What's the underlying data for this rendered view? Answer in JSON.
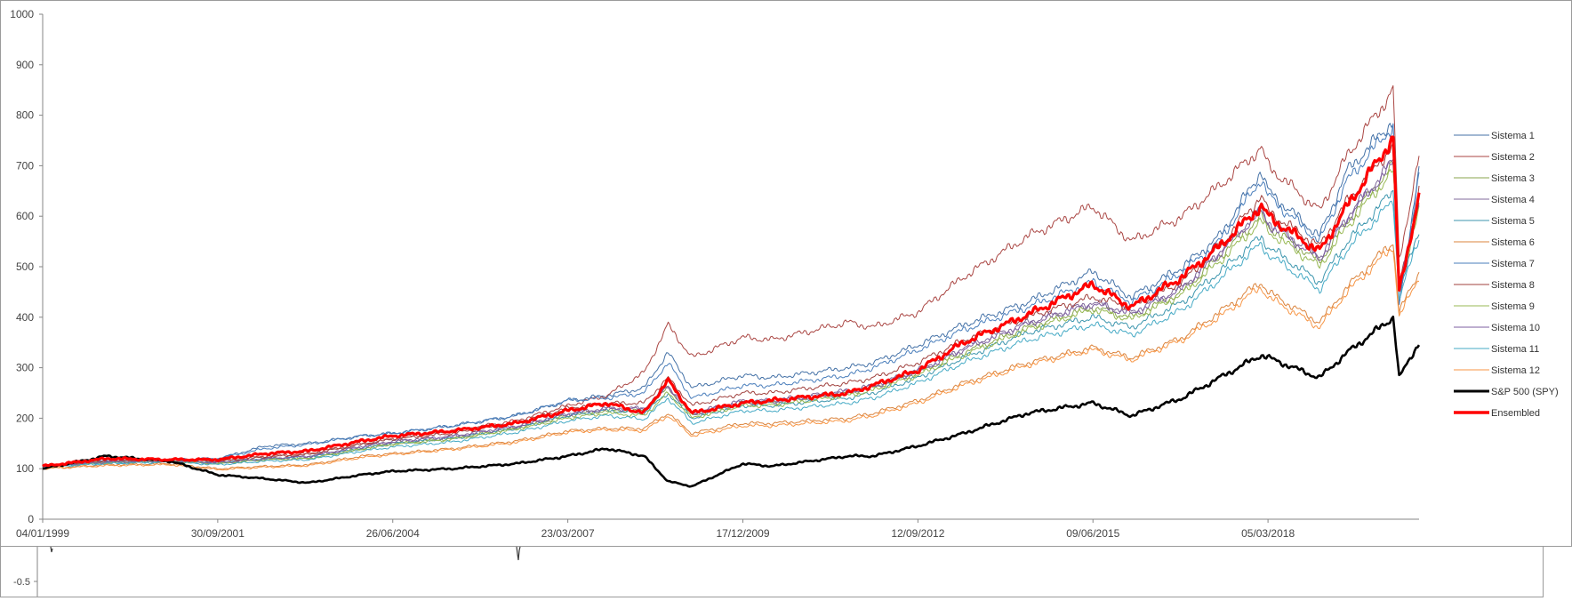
{
  "chart_data": [
    {
      "type": "line",
      "title": "",
      "xlabel": "",
      "ylabel": "",
      "ylim": [
        0,
        1000
      ],
      "y_ticks": [
        "0",
        "100",
        "200",
        "300",
        "400",
        "500",
        "600",
        "700",
        "800",
        "900",
        "1000"
      ],
      "x_tick_labels": [
        "04/01/1999",
        "30/09/2001",
        "26/06/2004",
        "23/03/2007",
        "17/12/2009",
        "12/09/2012",
        "09/06/2015",
        "05/03/2018"
      ],
      "x_range": [
        "04/01/1999",
        "07/2020"
      ],
      "grid": false,
      "legend_position": "right",
      "x_dates": [
        "1999-01-04",
        "2000-01-01",
        "2001-01-01",
        "2001-09-30",
        "2002-07-01",
        "2003-03-01",
        "2004-01-01",
        "2004-06-26",
        "2005-06-01",
        "2006-06-01",
        "2007-03-23",
        "2007-11-01",
        "2008-06-01",
        "2008-10-15",
        "2009-03-01",
        "2009-12-17",
        "2010-06-01",
        "2011-08-10",
        "2012-01-01",
        "2012-09-12",
        "2013-06-01",
        "2014-06-01",
        "2015-06-09",
        "2016-01-15",
        "2016-11-01",
        "2017-06-01",
        "2018-01-25",
        "2018-03-05",
        "2018-12-24",
        "2019-06-01",
        "2020-02-19",
        "2020-03-23",
        "2020-07-15"
      ],
      "series": [
        {
          "name": "Sistema 1",
          "color": "#4572a7",
          "values": [
            105,
            115,
            118,
            120,
            145,
            150,
            165,
            170,
            185,
            205,
            235,
            245,
            260,
            330,
            260,
            285,
            280,
            300,
            310,
            345,
            385,
            430,
            490,
            440,
            500,
            560,
            690,
            650,
            560,
            690,
            790,
            420,
            700
          ]
        },
        {
          "name": "Sistema 2",
          "color": "#aa4643",
          "values": [
            105,
            115,
            118,
            115,
            125,
            130,
            150,
            160,
            175,
            195,
            225,
            245,
            290,
            385,
            320,
            360,
            355,
            390,
            380,
            410,
            480,
            560,
            620,
            550,
            600,
            660,
            735,
            700,
            610,
            720,
            850,
            510,
            720
          ]
        },
        {
          "name": "Sistema 3",
          "color": "#89a54e",
          "values": [
            105,
            112,
            115,
            110,
            118,
            120,
            140,
            150,
            160,
            180,
            205,
            215,
            215,
            260,
            205,
            230,
            230,
            250,
            260,
            290,
            330,
            380,
            420,
            400,
            450,
            520,
            600,
            580,
            510,
            590,
            700,
            470,
            620
          ]
        },
        {
          "name": "Sistema 4",
          "color": "#80699b",
          "values": [
            105,
            113,
            116,
            112,
            120,
            125,
            145,
            155,
            165,
            185,
            210,
            220,
            220,
            265,
            210,
            235,
            235,
            255,
            265,
            295,
            340,
            390,
            430,
            410,
            460,
            530,
            615,
            590,
            520,
            600,
            710,
            470,
            630
          ]
        },
        {
          "name": "Sistema 5",
          "color": "#3d96ae",
          "values": [
            105,
            112,
            115,
            112,
            120,
            122,
            140,
            150,
            160,
            180,
            205,
            215,
            210,
            250,
            200,
            225,
            225,
            240,
            250,
            280,
            320,
            370,
            400,
            380,
            430,
            490,
            560,
            540,
            470,
            550,
            650,
            450,
            570
          ]
        },
        {
          "name": "Sistema 6",
          "color": "#db843d",
          "values": [
            100,
            108,
            110,
            100,
            105,
            108,
            125,
            130,
            140,
            155,
            175,
            180,
            180,
            210,
            170,
            190,
            190,
            200,
            210,
            235,
            270,
            310,
            340,
            320,
            360,
            410,
            470,
            450,
            390,
            460,
            550,
            410,
            490
          ]
        },
        {
          "name": "Sistema 7",
          "color": "#4a7ebb",
          "values": [
            105,
            115,
            118,
            120,
            140,
            148,
            165,
            170,
            185,
            205,
            235,
            240,
            250,
            310,
            240,
            265,
            265,
            285,
            300,
            335,
            375,
            420,
            470,
            430,
            490,
            550,
            675,
            640,
            550,
            670,
            780,
            420,
            690
          ]
        },
        {
          "name": "Sistema 8",
          "color": "#a0403d",
          "values": [
            105,
            114,
            117,
            114,
            123,
            128,
            148,
            158,
            170,
            190,
            220,
            230,
            230,
            280,
            225,
            250,
            250,
            270,
            280,
            310,
            355,
            400,
            440,
            420,
            470,
            540,
            640,
            610,
            540,
            630,
            740,
            460,
            650
          ]
        },
        {
          "name": "Sistema 9",
          "color": "#98b954",
          "values": [
            105,
            112,
            115,
            110,
            118,
            120,
            138,
            148,
            158,
            178,
            200,
            210,
            205,
            250,
            200,
            225,
            225,
            245,
            255,
            285,
            325,
            375,
            415,
            395,
            445,
            510,
            590,
            570,
            500,
            580,
            690,
            460,
            610
          ]
        },
        {
          "name": "Sistema 10",
          "color": "#7d5fa0",
          "values": [
            105,
            113,
            116,
            112,
            120,
            124,
            143,
            153,
            163,
            183,
            208,
            218,
            218,
            262,
            208,
            232,
            232,
            252,
            262,
            292,
            336,
            386,
            426,
            406,
            456,
            526,
            610,
            585,
            515,
            595,
            705,
            468,
            625
          ]
        },
        {
          "name": "Sistema 11",
          "color": "#46aac5",
          "values": [
            103,
            110,
            113,
            108,
            115,
            118,
            135,
            143,
            153,
            172,
            195,
            205,
            198,
            240,
            190,
            215,
            215,
            230,
            240,
            270,
            310,
            355,
            385,
            365,
            415,
            475,
            545,
            525,
            455,
            535,
            630,
            440,
            555
          ]
        },
        {
          "name": "Sistema 12",
          "color": "#f79646",
          "values": [
            100,
            106,
            108,
            98,
            103,
            106,
            122,
            128,
            138,
            152,
            172,
            177,
            175,
            205,
            165,
            185,
            185,
            195,
            205,
            230,
            265,
            305,
            335,
            315,
            355,
            400,
            460,
            440,
            380,
            450,
            540,
            400,
            480
          ]
        },
        {
          "name": "S&P 500 (SPY)",
          "color": "#000000",
          "values": [
            100,
            125,
            115,
            88,
            80,
            72,
            88,
            95,
            100,
            110,
            125,
            140,
            125,
            75,
            65,
            110,
            105,
            125,
            125,
            145,
            170,
            210,
            230,
            205,
            240,
            280,
            325,
            320,
            280,
            330,
            400,
            280,
            350
          ]
        },
        {
          "name": "Ensembled",
          "color": "#ff0000",
          "values": [
            105,
            120,
            118,
            118,
            130,
            135,
            155,
            165,
            175,
            190,
            215,
            230,
            210,
            275,
            210,
            230,
            235,
            250,
            265,
            295,
            350,
            405,
            465,
            420,
            480,
            540,
            620,
            600,
            530,
            620,
            755,
            450,
            640
          ]
        }
      ]
    },
    {
      "type": "line",
      "y_ticks": [
        "-0.5"
      ]
    }
  ]
}
